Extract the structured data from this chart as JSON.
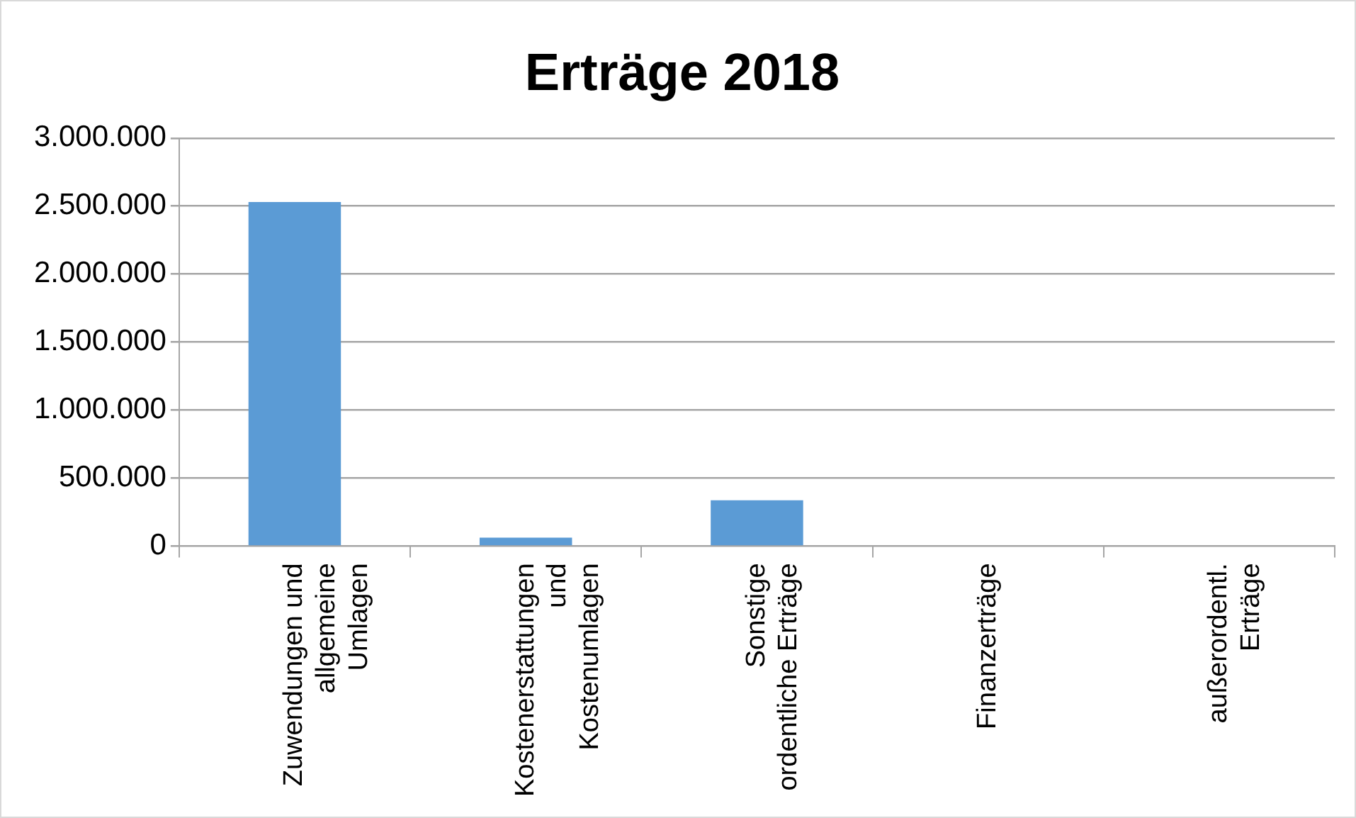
{
  "chart_data": {
    "type": "bar",
    "title": "Erträge 2018",
    "categories": [
      "Zuwendungen und\nallgemeine\nUmlagen",
      "Kostenerstattungen\nund\nKostenumlagen",
      "Sonstige\nordentliche Erträge",
      "Finanzerträge",
      "außerordentl.\nErträge"
    ],
    "values": [
      2530000,
      62000,
      337000,
      0,
      0
    ],
    "color": "#5b9bd5",
    "ylim": [
      0,
      3000000
    ],
    "yticks": [
      {
        "value": 0,
        "label": "0"
      },
      {
        "value": 500000,
        "label": "500.000"
      },
      {
        "value": 1000000,
        "label": "1.000.000"
      },
      {
        "value": 1500000,
        "label": "1.500.000"
      },
      {
        "value": 2000000,
        "label": "2.000.000"
      },
      {
        "value": 2500000,
        "label": "2.500.000"
      },
      {
        "value": 3000000,
        "label": "3.000.000"
      }
    ],
    "grid": "y"
  }
}
